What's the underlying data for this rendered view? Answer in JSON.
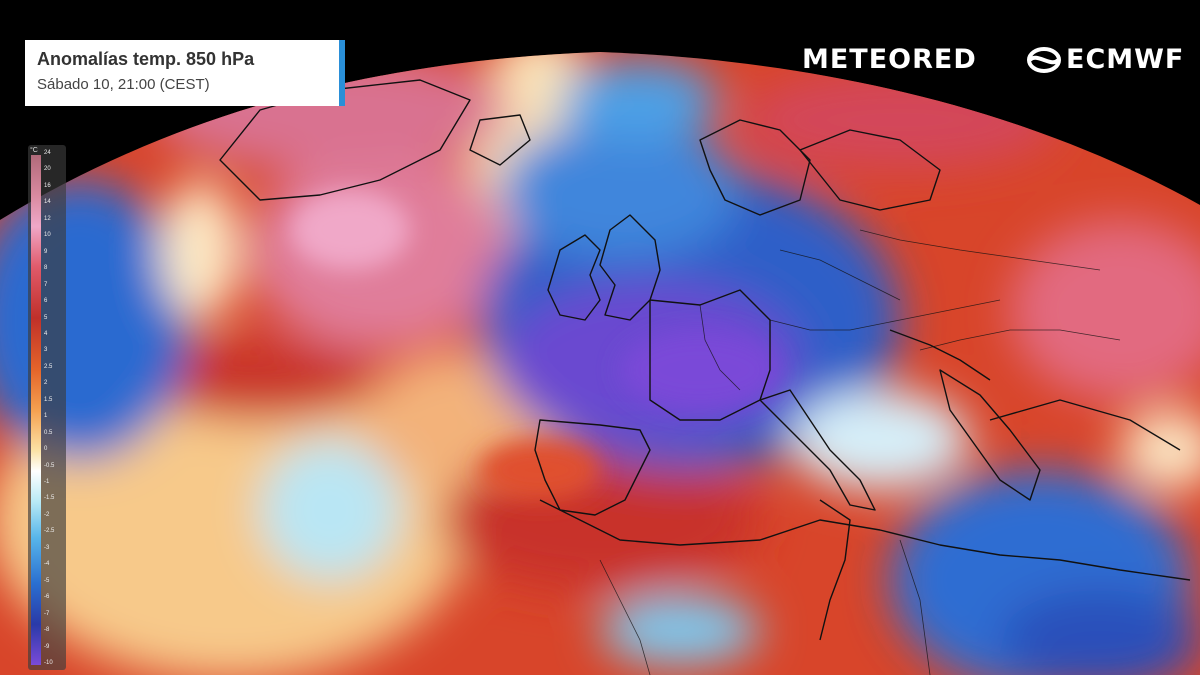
{
  "title": {
    "main": "Anomalías temp. 850 hPa",
    "subtitle": "Sábado 10, 21:00 (CEST)"
  },
  "brands": {
    "meteored": "METEORED",
    "ecmwf": "ECMWF"
  },
  "scale": {
    "unit": "°C",
    "labels": [
      "24",
      "20",
      "16",
      "14",
      "12",
      "10",
      "9",
      "8",
      "7",
      "6",
      "5",
      "4",
      "3",
      "2.5",
      "2",
      "1.5",
      "1",
      "0.5",
      "0",
      "-0.5",
      "-1",
      "-1.5",
      "-2",
      "-2.5",
      "-3",
      "-4",
      "-5",
      "-6",
      "-7",
      "-8",
      "-9",
      "-10"
    ]
  },
  "colors": {
    "anomaly_warm": "#d8452a",
    "anomaly_hot": "#e07d9a",
    "anomaly_cold": "#2a5fc8",
    "anomaly_very_cold": "#6a4ad0",
    "title_accent": "#2a8fd8"
  }
}
